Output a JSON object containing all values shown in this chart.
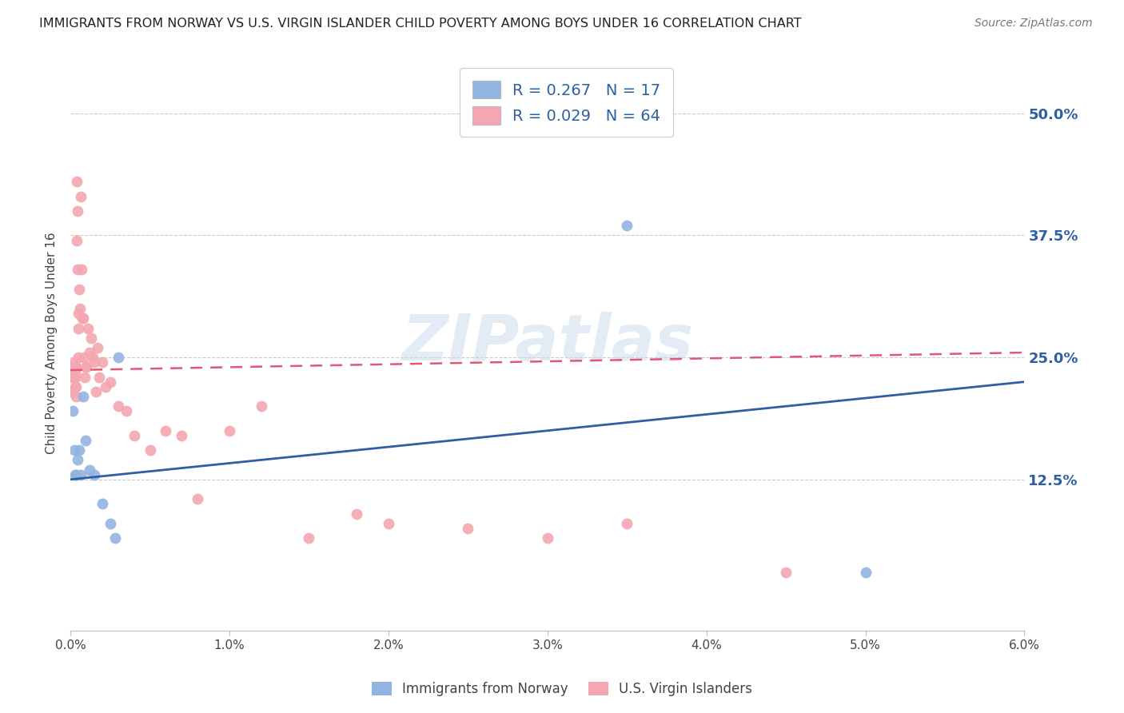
{
  "title": "IMMIGRANTS FROM NORWAY VS U.S. VIRGIN ISLANDER CHILD POVERTY AMONG BOYS UNDER 16 CORRELATION CHART",
  "source": "Source: ZipAtlas.com",
  "ylabel": "Child Poverty Among Boys Under 16",
  "xlim": [
    0.0,
    0.06
  ],
  "ylim": [
    -0.03,
    0.56
  ],
  "xtick_vals": [
    0.0,
    0.01,
    0.02,
    0.03,
    0.04,
    0.05,
    0.06
  ],
  "xtick_labels": [
    "0.0%",
    "1.0%",
    "2.0%",
    "3.0%",
    "4.0%",
    "5.0%",
    "6.0%"
  ],
  "ytick_vals": [
    0.0,
    0.125,
    0.25,
    0.375,
    0.5
  ],
  "ytick_labels": [
    "",
    "12.5%",
    "25.0%",
    "37.5%",
    "50.0%"
  ],
  "legend1_label": "R = 0.267   N = 17",
  "legend2_label": "R = 0.029   N = 64",
  "blue_color": "#92B4E0",
  "pink_color": "#F4A7B0",
  "blue_line_color": "#2E5FA3",
  "pink_line_color": "#E05878",
  "background_color": "#FFFFFF",
  "grid_color": "#CCCCCC",
  "watermark": "ZIPatlas",
  "right_yaxis_color": "#2E5FA3",
  "norway_x": [
    0.00015,
    0.00025,
    0.0003,
    0.00035,
    0.00045,
    0.00055,
    0.00065,
    0.0008,
    0.00095,
    0.0012,
    0.0015,
    0.002,
    0.0025,
    0.0028,
    0.003,
    0.035,
    0.05
  ],
  "norway_y": [
    0.195,
    0.155,
    0.13,
    0.13,
    0.145,
    0.155,
    0.13,
    0.21,
    0.165,
    0.135,
    0.13,
    0.1,
    0.08,
    0.065,
    0.25,
    0.385,
    0.03
  ],
  "usvi_x": [
    5e-05,
    8e-05,
    0.0001,
    0.0001,
    0.00012,
    0.00015,
    0.00015,
    0.00018,
    0.0002,
    0.0002,
    0.00022,
    0.00025,
    0.00025,
    0.00028,
    0.00028,
    0.0003,
    0.0003,
    0.00032,
    0.00035,
    0.00035,
    0.00038,
    0.0004,
    0.00042,
    0.00045,
    0.00048,
    0.0005,
    0.0005,
    0.00055,
    0.0006,
    0.00065,
    0.0007,
    0.00075,
    0.0008,
    0.00085,
    0.0009,
    0.00095,
    0.001,
    0.0011,
    0.0012,
    0.0013,
    0.0014,
    0.0015,
    0.0016,
    0.0017,
    0.0018,
    0.002,
    0.0022,
    0.0025,
    0.003,
    0.0035,
    0.004,
    0.005,
    0.006,
    0.007,
    0.008,
    0.01,
    0.012,
    0.015,
    0.018,
    0.02,
    0.025,
    0.03,
    0.035,
    0.045
  ],
  "usvi_y": [
    0.23,
    0.24,
    0.215,
    0.215,
    0.23,
    0.235,
    0.235,
    0.23,
    0.235,
    0.235,
    0.23,
    0.245,
    0.23,
    0.22,
    0.24,
    0.23,
    0.235,
    0.24,
    0.21,
    0.22,
    0.37,
    0.43,
    0.4,
    0.34,
    0.28,
    0.295,
    0.25,
    0.32,
    0.3,
    0.415,
    0.34,
    0.29,
    0.29,
    0.25,
    0.23,
    0.24,
    0.24,
    0.28,
    0.255,
    0.27,
    0.25,
    0.245,
    0.215,
    0.26,
    0.23,
    0.245,
    0.22,
    0.225,
    0.2,
    0.195,
    0.17,
    0.155,
    0.175,
    0.17,
    0.105,
    0.175,
    0.2,
    0.065,
    0.09,
    0.08,
    0.075,
    0.065,
    0.08,
    0.03
  ]
}
